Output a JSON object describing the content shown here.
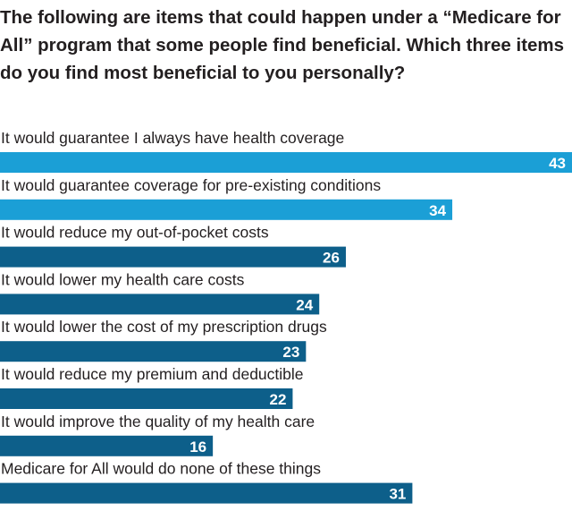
{
  "chart_data": {
    "type": "bar",
    "orientation": "horizontal",
    "title": "The following are items that could happen under a “Medicare for All” program that some people find beneficial. Which three items do you find most beneficial to you personally?",
    "categories": [
      "It would guarantee I always have health coverage",
      "It would guarantee coverage for pre-existing conditions",
      "It would reduce my out-of-pocket costs",
      "It would lower my health care costs",
      "It would lower the cost of my prescription drugs",
      "It would reduce my premium and deductible",
      "It would improve the quality of my health care",
      "Medicare for All would do none of these things"
    ],
    "values": [
      43,
      34,
      26,
      24,
      23,
      22,
      16,
      31
    ],
    "xlim": [
      0,
      43
    ],
    "colors": {
      "light": "#1b9fd6",
      "dark": "#0d5f8a"
    },
    "bar_color_keys": [
      "light",
      "light",
      "dark",
      "dark",
      "dark",
      "dark",
      "dark",
      "dark"
    ]
  }
}
